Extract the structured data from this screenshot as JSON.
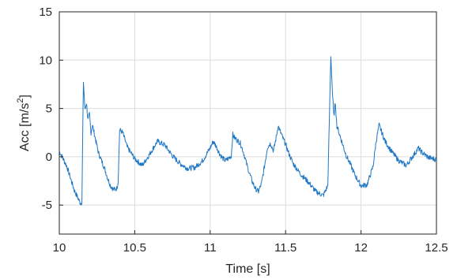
{
  "chart_data": {
    "type": "line",
    "title": "",
    "xlabel": "Time [s]",
    "ylabel_main": "Acc [m/s",
    "ylabel_sup": "2",
    "ylabel_end": "]",
    "xlim": [
      10,
      12.5
    ],
    "ylim": [
      -8,
      15
    ],
    "xticks": [
      10,
      10.5,
      11,
      11.5,
      12,
      12.5
    ],
    "xtick_labels": [
      "10",
      "10.5",
      "11",
      "11.5",
      "12",
      "12.5"
    ],
    "yticks": [
      -5,
      0,
      5,
      10,
      15
    ],
    "ytick_labels": [
      "-5",
      "0",
      "5",
      "10",
      "15"
    ],
    "grid": true,
    "line_color": "#1f77c4",
    "series": [
      {
        "x": [
          10.0,
          10.05,
          10.1,
          10.14,
          10.15,
          10.155,
          10.16,
          10.17,
          10.18,
          10.19,
          10.2,
          10.21,
          10.22,
          10.24,
          10.26,
          10.28,
          10.3,
          10.32,
          10.34,
          10.36,
          10.38,
          10.39,
          10.4,
          10.42,
          10.45,
          10.5,
          10.55,
          10.6,
          10.65,
          10.7,
          10.75,
          10.8,
          10.85,
          10.9,
          10.95,
          11.0,
          11.02,
          11.04,
          11.06,
          11.08,
          11.1,
          11.12,
          11.14,
          11.15,
          11.16,
          11.18,
          11.2,
          11.22,
          11.25,
          11.28,
          11.3,
          11.32,
          11.34,
          11.36,
          11.38,
          11.4,
          11.42,
          11.44,
          11.45,
          11.46,
          11.48,
          11.5,
          11.52,
          11.55,
          11.6,
          11.65,
          11.7,
          11.75,
          11.78,
          11.8,
          11.81,
          11.82,
          11.83,
          11.84,
          11.86,
          11.88,
          11.9,
          11.93,
          11.96,
          12.0,
          12.04,
          12.08,
          12.1,
          12.12,
          12.14,
          12.16,
          12.2,
          12.25,
          12.3,
          12.35,
          12.38,
          12.4,
          12.45,
          12.5
        ],
        "y": [
          0.6,
          -1.0,
          -3.5,
          -4.8,
          -4.7,
          2.0,
          7.8,
          4.8,
          5.6,
          3.8,
          4.4,
          2.5,
          3.3,
          1.8,
          0.4,
          -0.4,
          -1.2,
          -2.2,
          -3.0,
          -3.4,
          -3.3,
          -2.6,
          2.8,
          2.5,
          1.0,
          -0.2,
          -0.9,
          0.3,
          1.6,
          1.2,
          0.1,
          -0.7,
          -1.2,
          -1.1,
          -0.4,
          0.9,
          1.6,
          1.1,
          0.4,
          -0.1,
          -0.4,
          -0.2,
          0.1,
          2.3,
          2.0,
          1.7,
          1.4,
          0.5,
          -1.2,
          -2.6,
          -3.3,
          -3.6,
          -2.8,
          -1.0,
          1.0,
          1.4,
          0.6,
          2.2,
          3.2,
          2.8,
          2.0,
          1.3,
          0.4,
          -0.7,
          -1.8,
          -2.6,
          -3.6,
          -4.0,
          -3.0,
          10.5,
          6.8,
          4.2,
          5.6,
          3.2,
          2.2,
          1.2,
          0.2,
          -0.8,
          -1.9,
          -3.0,
          -2.9,
          -1.0,
          1.6,
          3.3,
          2.4,
          1.6,
          0.6,
          -0.4,
          -0.9,
          0.2,
          0.9,
          0.5,
          -0.1,
          -0.3
        ]
      }
    ]
  }
}
